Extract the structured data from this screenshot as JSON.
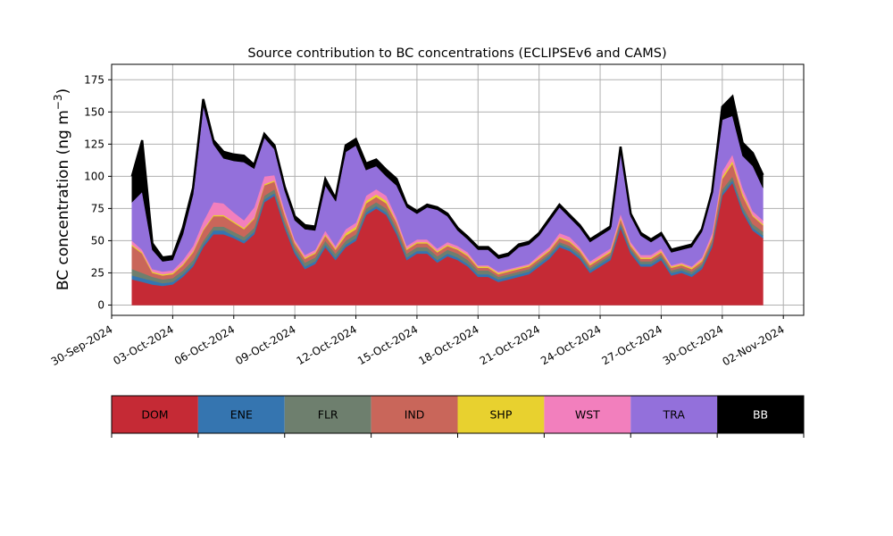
{
  "chart_data": {
    "type": "area",
    "stacked": true,
    "title": "Source contribution to BC concentrations (ECLIPSEv6 and CAMS)",
    "ylabel_text": "BC concentration (ng m",
    "ylabel_sup": "−3",
    "ylabel_close": ")",
    "xlabel": "",
    "x_axis_type": "date",
    "xlim": [
      "2024-09-30",
      "2024-11-03"
    ],
    "ylim": [
      -8,
      187
    ],
    "yticks": [
      0,
      25,
      50,
      75,
      100,
      125,
      150,
      175
    ],
    "xticks": [
      "2024-09-30",
      "2024-10-03",
      "2024-10-06",
      "2024-10-09",
      "2024-10-12",
      "2024-10-15",
      "2024-10-18",
      "2024-10-21",
      "2024-10-24",
      "2024-10-27",
      "2024-10-30",
      "2024-11-02"
    ],
    "xtick_labels": [
      "30-Sep-2024",
      "03-Oct-2024",
      "06-Oct-2024",
      "09-Oct-2024",
      "12-Oct-2024",
      "15-Oct-2024",
      "18-Oct-2024",
      "21-Oct-2024",
      "24-Oct-2024",
      "27-Oct-2024",
      "30-Oct-2024",
      "02-Nov-2024"
    ],
    "grid": true,
    "x": [
      "2024-10-01",
      "2024-10-01T12:00",
      "2024-10-02",
      "2024-10-02T12:00",
      "2024-10-03",
      "2024-10-03T12:00",
      "2024-10-04",
      "2024-10-04T12:00",
      "2024-10-05",
      "2024-10-05T12:00",
      "2024-10-06",
      "2024-10-06T12:00",
      "2024-10-07",
      "2024-10-07T12:00",
      "2024-10-08",
      "2024-10-08T12:00",
      "2024-10-09",
      "2024-10-09T12:00",
      "2024-10-10",
      "2024-10-10T12:00",
      "2024-10-11",
      "2024-10-11T12:00",
      "2024-10-12",
      "2024-10-12T12:00",
      "2024-10-13",
      "2024-10-13T12:00",
      "2024-10-14",
      "2024-10-14T12:00",
      "2024-10-15",
      "2024-10-15T12:00",
      "2024-10-16",
      "2024-10-16T12:00",
      "2024-10-17",
      "2024-10-17T12:00",
      "2024-10-18",
      "2024-10-18T12:00",
      "2024-10-19",
      "2024-10-19T12:00",
      "2024-10-20",
      "2024-10-20T12:00",
      "2024-10-21",
      "2024-10-21T12:00",
      "2024-10-22",
      "2024-10-22T12:00",
      "2024-10-23",
      "2024-10-23T12:00",
      "2024-10-24",
      "2024-10-24T12:00",
      "2024-10-25",
      "2024-10-25T12:00",
      "2024-10-26",
      "2024-10-26T12:00",
      "2024-10-27",
      "2024-10-27T12:00",
      "2024-10-28",
      "2024-10-28T12:00",
      "2024-10-29",
      "2024-10-29T12:00",
      "2024-10-30",
      "2024-10-30T12:00",
      "2024-10-31",
      "2024-10-31T12:00",
      "2024-11-01"
    ],
    "series": [
      {
        "name": "DOM",
        "color": "#c52a35",
        "values": [
          20,
          18,
          16,
          15,
          16,
          22,
          30,
          45,
          55,
          55,
          52,
          48,
          55,
          80,
          85,
          60,
          40,
          28,
          32,
          45,
          35,
          45,
          50,
          70,
          75,
          70,
          55,
          35,
          40,
          40,
          33,
          38,
          35,
          30,
          22,
          22,
          18,
          20,
          22,
          24,
          30,
          36,
          45,
          42,
          36,
          25,
          30,
          35,
          60,
          40,
          30,
          30,
          35,
          23,
          25,
          22,
          28,
          45,
          85,
          95,
          72,
          58,
          52
        ]
      },
      {
        "name": "ENE",
        "color": "#3575b0",
        "values": [
          3,
          3,
          3,
          2,
          2,
          2,
          2,
          2,
          3,
          3,
          2,
          2,
          2,
          2,
          2,
          2,
          2,
          2,
          2,
          2,
          2,
          2,
          2,
          2,
          2,
          2,
          2,
          2,
          2,
          2,
          2,
          2,
          2,
          2,
          2,
          2,
          2,
          2,
          2,
          2,
          2,
          2,
          2,
          2,
          2,
          2,
          2,
          2,
          2,
          2,
          2,
          2,
          2,
          2,
          2,
          2,
          2,
          2,
          2,
          2,
          2,
          2,
          2
        ]
      },
      {
        "name": "FLR",
        "color": "#6e7f6e",
        "values": [
          5,
          4,
          3,
          3,
          3,
          3,
          3,
          3,
          3,
          3,
          3,
          3,
          3,
          3,
          3,
          3,
          3,
          3,
          3,
          3,
          3,
          3,
          3,
          3,
          3,
          3,
          3,
          3,
          3,
          3,
          3,
          3,
          3,
          3,
          3,
          3,
          2,
          2,
          2,
          2,
          2,
          2,
          2,
          2,
          2,
          2,
          2,
          2,
          2,
          2,
          2,
          2,
          2,
          2,
          2,
          2,
          2,
          2,
          3,
          3,
          3,
          3,
          3
        ]
      },
      {
        "name": "IND",
        "color": "#c9665a",
        "values": [
          18,
          15,
          3,
          3,
          3,
          4,
          6,
          8,
          8,
          8,
          7,
          6,
          7,
          8,
          6,
          5,
          3,
          3,
          3,
          4,
          3,
          4,
          4,
          4,
          4,
          4,
          4,
          3,
          3,
          3,
          3,
          3,
          3,
          3,
          2,
          2,
          2,
          2,
          2,
          2,
          2,
          2,
          3,
          3,
          2,
          2,
          2,
          2,
          3,
          2,
          2,
          2,
          2,
          2,
          2,
          2,
          2,
          3,
          8,
          10,
          8,
          6,
          5
        ]
      },
      {
        "name": "SHP",
        "color": "#e8d12f",
        "values": [
          1,
          1,
          1,
          1,
          1,
          1,
          1,
          1,
          1,
          1,
          1,
          1,
          1,
          1,
          1,
          1,
          1,
          1,
          1,
          1,
          1,
          2,
          2,
          2,
          2,
          2,
          1,
          1,
          1,
          1,
          1,
          1,
          1,
          1,
          1,
          1,
          1,
          1,
          1,
          1,
          1,
          1,
          1,
          1,
          1,
          1,
          1,
          1,
          1,
          1,
          1,
          1,
          1,
          1,
          1,
          1,
          1,
          1,
          2,
          2,
          2,
          1,
          1
        ]
      },
      {
        "name": "WST",
        "color": "#f27fbd",
        "values": [
          3,
          2,
          2,
          2,
          2,
          3,
          4,
          6,
          10,
          9,
          7,
          6,
          8,
          6,
          4,
          3,
          2,
          2,
          2,
          3,
          2,
          3,
          3,
          4,
          4,
          4,
          3,
          2,
          2,
          2,
          2,
          2,
          2,
          2,
          1,
          1,
          1,
          1,
          1,
          1,
          2,
          2,
          3,
          3,
          2,
          2,
          2,
          2,
          3,
          2,
          2,
          2,
          2,
          1,
          1,
          1,
          2,
          3,
          4,
          5,
          4,
          3,
          3
        ]
      },
      {
        "name": "TRA",
        "color": "#9370db",
        "values": [
          30,
          45,
          15,
          8,
          8,
          20,
          40,
          90,
          45,
          35,
          40,
          45,
          30,
          30,
          20,
          15,
          15,
          20,
          15,
          35,
          35,
          60,
          60,
          20,
          18,
          15,
          25,
          30,
          20,
          25,
          30,
          20,
          12,
          10,
          12,
          12,
          10,
          10,
          15,
          15,
          15,
          20,
          20,
          15,
          15,
          15,
          15,
          15,
          50,
          20,
          15,
          10,
          10,
          10,
          10,
          15,
          20,
          30,
          40,
          30,
          25,
          35,
          25
        ]
      },
      {
        "name": "BB",
        "color": "#000000",
        "values": [
          20,
          40,
          5,
          3,
          3,
          5,
          5,
          5,
          3,
          5,
          5,
          5,
          3,
          3,
          3,
          3,
          3,
          3,
          3,
          5,
          2,
          5,
          5,
          5,
          5,
          5,
          5,
          2,
          2,
          2,
          2,
          2,
          2,
          2,
          2,
          2,
          2,
          2,
          2,
          2,
          2,
          2,
          2,
          2,
          2,
          2,
          2,
          2,
          2,
          2,
          2,
          2,
          2,
          2,
          2,
          2,
          2,
          2,
          10,
          15,
          10,
          10,
          10
        ]
      }
    ],
    "legend": {
      "placement": "bottom",
      "entries": [
        "DOM",
        "ENE",
        "FLR",
        "IND",
        "SHP",
        "WST",
        "TRA",
        "BB"
      ]
    }
  }
}
